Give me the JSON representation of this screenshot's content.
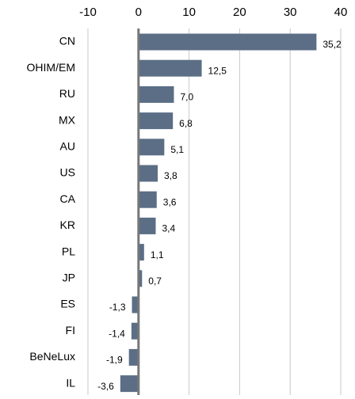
{
  "chart_data": {
    "type": "bar",
    "orientation": "horizontal",
    "categories": [
      "CN",
      "OHIM/EM",
      "RU",
      "MX",
      "AU",
      "US",
      "CA",
      "KR",
      "PL",
      "JP",
      "ES",
      "FI",
      "BeNeLux",
      "IL"
    ],
    "values": [
      35.2,
      12.5,
      7.0,
      6.8,
      5.1,
      3.8,
      3.6,
      3.4,
      1.1,
      0.7,
      -1.3,
      -1.4,
      -1.9,
      -3.6
    ],
    "value_labels": [
      "35,2",
      "12,5",
      "7,0",
      "6,8",
      "5,1",
      "3,8",
      "3,6",
      "3,4",
      "1,1",
      "0,7",
      "-1,3",
      "-1,4",
      "-1,9",
      "-3,6"
    ],
    "color": "#5b6e86",
    "xlim": [
      -10,
      40
    ],
    "xticks": [
      -10,
      0,
      10,
      20,
      30,
      40
    ],
    "grid": true
  }
}
